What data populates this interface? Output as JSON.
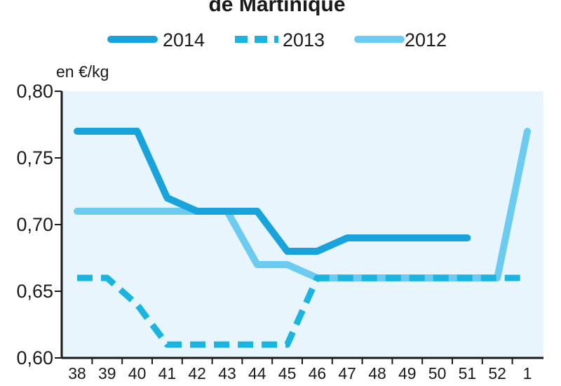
{
  "chart_data": {
    "type": "line",
    "title": "de Martinique",
    "ylabel": "en €/kg",
    "xlabel": "",
    "categories": [
      "38",
      "39",
      "40",
      "41",
      "42",
      "43",
      "44",
      "45",
      "46",
      "47",
      "48",
      "49",
      "50",
      "51",
      "52",
      "1"
    ],
    "ylim": [
      0.6,
      0.8
    ],
    "yticks": [
      "0,60",
      "0,65",
      "0,70",
      "0,75",
      "0,80"
    ],
    "ytick_values": [
      0.6,
      0.65,
      0.7,
      0.75,
      0.8
    ],
    "grid": false,
    "legend_position": "top",
    "series": [
      {
        "name": "2014",
        "style": "solid",
        "color": "#19a3dc",
        "values": [
          0.77,
          0.77,
          0.77,
          0.72,
          0.71,
          0.71,
          0.71,
          0.68,
          0.68,
          0.69,
          0.69,
          0.69,
          0.69,
          0.69,
          null,
          null
        ]
      },
      {
        "name": "2013",
        "style": "dashed",
        "color": "#19b5e0",
        "values": [
          0.66,
          0.66,
          0.64,
          0.61,
          0.61,
          0.61,
          0.61,
          0.61,
          0.66,
          0.66,
          0.66,
          0.66,
          0.66,
          0.66,
          0.66,
          0.66
        ]
      },
      {
        "name": "2012",
        "style": "solid",
        "color": "#6ccbf0",
        "values": [
          0.71,
          0.71,
          0.71,
          0.71,
          0.71,
          0.71,
          0.67,
          0.67,
          0.66,
          0.66,
          0.66,
          0.66,
          0.66,
          0.66,
          0.66,
          0.77
        ]
      }
    ],
    "colors": {
      "plot_background": "#e8f5fc",
      "axis": "#1a1a1a"
    }
  }
}
